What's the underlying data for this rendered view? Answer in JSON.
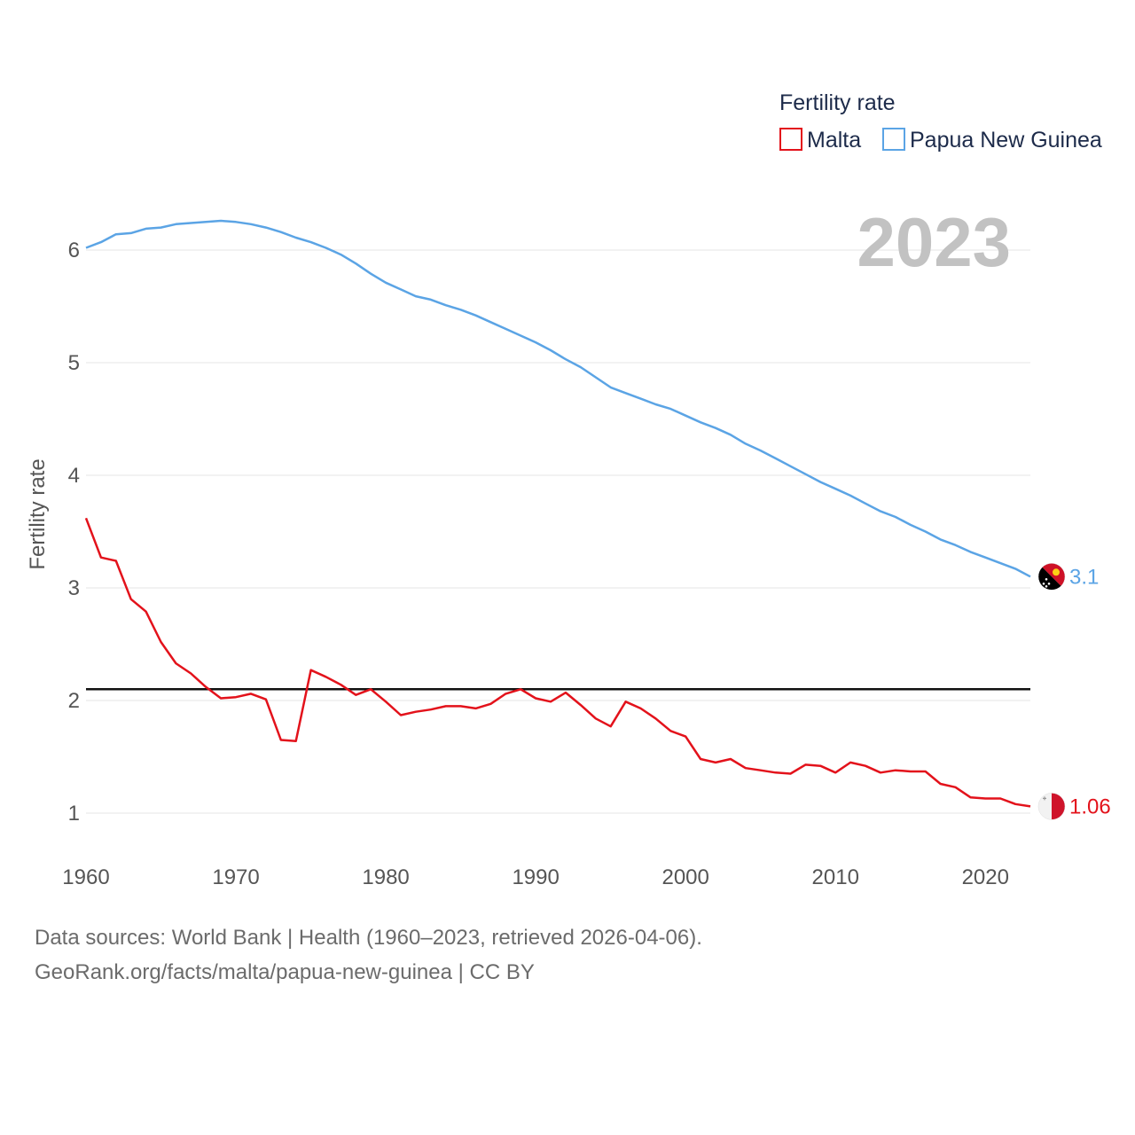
{
  "chart_data": {
    "type": "line",
    "title": "Fertility rate",
    "ylabel": "Fertility rate",
    "xlabel": "",
    "year_display": "2023",
    "xlim": [
      1960,
      2023
    ],
    "ylim": [
      0.8,
      6.5
    ],
    "x_ticks": [
      "1960",
      "1970",
      "1980",
      "1990",
      "2000",
      "2010",
      "2020"
    ],
    "y_ticks": [
      "1",
      "2",
      "3",
      "4",
      "5",
      "6"
    ],
    "reference_line": 2.1,
    "x": [
      1960,
      1961,
      1962,
      1963,
      1964,
      1965,
      1966,
      1967,
      1968,
      1969,
      1970,
      1971,
      1972,
      1973,
      1974,
      1975,
      1976,
      1977,
      1978,
      1979,
      1980,
      1981,
      1982,
      1983,
      1984,
      1985,
      1986,
      1987,
      1988,
      1989,
      1990,
      1991,
      1992,
      1993,
      1994,
      1995,
      1996,
      1997,
      1998,
      1999,
      2000,
      2001,
      2002,
      2003,
      2004,
      2005,
      2006,
      2007,
      2008,
      2009,
      2010,
      2011,
      2012,
      2013,
      2014,
      2015,
      2016,
      2017,
      2018,
      2019,
      2020,
      2021,
      2022,
      2023
    ],
    "series": [
      {
        "name": "Malta",
        "color": "#e3121b",
        "end_label": "1.06",
        "values": [
          3.62,
          3.27,
          3.24,
          2.9,
          2.79,
          2.52,
          2.33,
          2.24,
          2.12,
          2.02,
          2.03,
          2.06,
          2.01,
          1.65,
          1.64,
          2.27,
          2.21,
          2.14,
          2.05,
          2.1,
          1.99,
          1.87,
          1.9,
          1.92,
          1.95,
          1.95,
          1.93,
          1.97,
          2.06,
          2.1,
          2.02,
          1.99,
          2.07,
          1.96,
          1.84,
          1.77,
          1.99,
          1.93,
          1.84,
          1.73,
          1.68,
          1.48,
          1.45,
          1.48,
          1.4,
          1.38,
          1.36,
          1.35,
          1.43,
          1.42,
          1.36,
          1.45,
          1.42,
          1.36,
          1.38,
          1.37,
          1.37,
          1.26,
          1.23,
          1.14,
          1.13,
          1.13,
          1.08,
          1.06
        ]
      },
      {
        "name": "Papua New Guinea",
        "color": "#5ba4e5",
        "end_label": "3.1",
        "values": [
          6.02,
          6.07,
          6.14,
          6.15,
          6.19,
          6.2,
          6.23,
          6.24,
          6.25,
          6.26,
          6.25,
          6.23,
          6.2,
          6.16,
          6.11,
          6.07,
          6.02,
          5.96,
          5.88,
          5.79,
          5.71,
          5.65,
          5.59,
          5.56,
          5.51,
          5.47,
          5.42,
          5.36,
          5.3,
          5.24,
          5.18,
          5.11,
          5.03,
          4.96,
          4.87,
          4.78,
          4.73,
          4.68,
          4.63,
          4.59,
          4.53,
          4.47,
          4.42,
          4.36,
          4.28,
          4.22,
          4.15,
          4.08,
          4.01,
          3.94,
          3.88,
          3.82,
          3.75,
          3.68,
          3.63,
          3.56,
          3.5,
          3.43,
          3.38,
          3.32,
          3.27,
          3.22,
          3.17,
          3.1
        ]
      }
    ]
  },
  "footer": {
    "sources": "Data sources: World Bank | Health (1960–2023, retrieved 2026-04-06).",
    "credit": "GeoRank.org/facts/malta/papua-new-guinea | CC BY"
  }
}
